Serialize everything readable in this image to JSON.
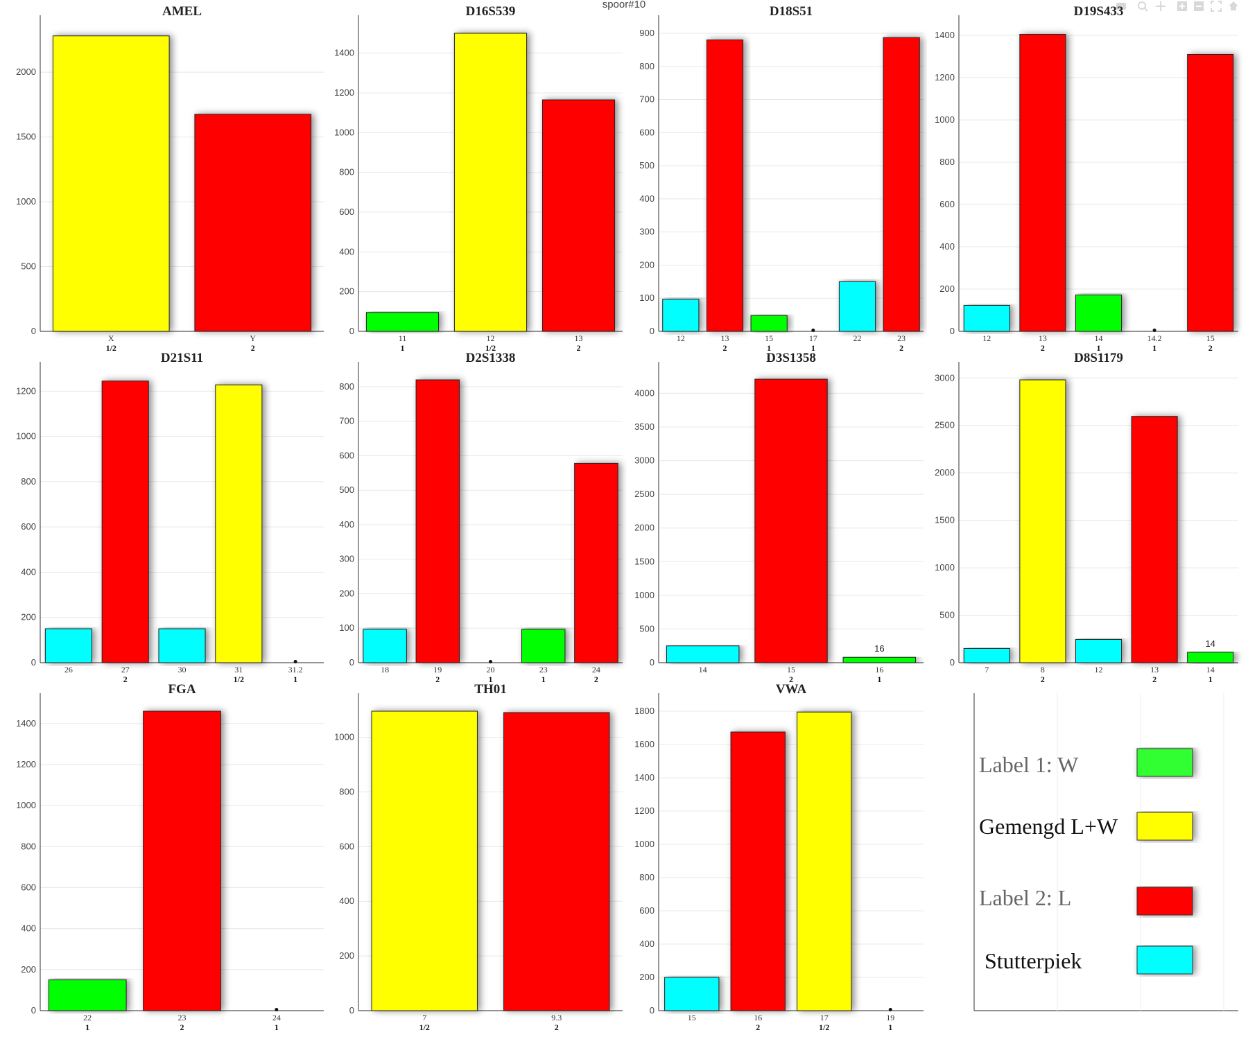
{
  "page_title": "spoor#10",
  "colors": {
    "W": "#00ff00",
    "mixed": "#ffff00",
    "L": "#ff0000",
    "stutter": "#00ffff"
  },
  "legend": {
    "items": [
      {
        "label": "Label 1: W",
        "color": "#33ff33"
      },
      {
        "label": "Gemengd L+W",
        "color": "#ffff00"
      },
      {
        "label": "Label 2: L",
        "color": "#ff0000"
      },
      {
        "label": "Stutterpiek",
        "color": "#00ffff"
      }
    ]
  },
  "toolbar": [
    "camera-icon",
    "zoom-icon",
    "pan-icon",
    "zoom-in-icon",
    "zoom-out-icon",
    "autoscale-icon",
    "home-icon"
  ],
  "chart_data": [
    {
      "type": "bar",
      "title": "AMEL",
      "ylim": [
        0,
        2300
      ],
      "yticks": [
        0,
        500,
        1000,
        1500,
        2000
      ],
      "bars": [
        {
          "x": "X",
          "sub": "1/2",
          "value": 2280,
          "color": "#ffff00"
        },
        {
          "x": "Y",
          "sub": "2",
          "value": 1675,
          "color": "#ff0000"
        }
      ]
    },
    {
      "type": "bar",
      "title": "D16S539",
      "ylim": [
        0,
        1500
      ],
      "yticks": [
        0,
        200,
        400,
        600,
        800,
        1000,
        1200,
        1400
      ],
      "bars": [
        {
          "x": "11",
          "sub": "1",
          "value": 95,
          "color": "#00ff00"
        },
        {
          "x": "12",
          "sub": "1/2",
          "value": 1500,
          "color": "#ffff00"
        },
        {
          "x": "13",
          "sub": "2",
          "value": 1165,
          "color": "#ff0000"
        }
      ]
    },
    {
      "type": "bar",
      "title": "D18S51",
      "ylim": [
        0,
        900
      ],
      "yticks": [
        0,
        100,
        200,
        300,
        400,
        500,
        600,
        700,
        800,
        900
      ],
      "bars": [
        {
          "x": "12",
          "sub": "",
          "value": 97,
          "color": "#00ffff"
        },
        {
          "x": "13",
          "sub": "2",
          "value": 880,
          "color": "#ff0000"
        },
        {
          "x": "15",
          "sub": "1",
          "value": 48,
          "color": "#00ff00"
        },
        {
          "x": "17",
          "sub": "1",
          "value": 2,
          "color": "#00ff00"
        },
        {
          "x": "22",
          "sub": "",
          "value": 150,
          "color": "#00ffff"
        },
        {
          "x": "23",
          "sub": "2",
          "value": 887,
          "color": "#ff0000"
        }
      ]
    },
    {
      "type": "bar",
      "title": "D19S433",
      "ylim": [
        0,
        1410
      ],
      "yticks": [
        0,
        200,
        400,
        600,
        800,
        1000,
        1200,
        1400
      ],
      "bars": [
        {
          "x": "12",
          "sub": "",
          "value": 123,
          "color": "#00ffff"
        },
        {
          "x": "13",
          "sub": "2",
          "value": 1405,
          "color": "#ff0000"
        },
        {
          "x": "14",
          "sub": "1",
          "value": 172,
          "color": "#00ff00"
        },
        {
          "x": "14.2",
          "sub": "1",
          "value": 3,
          "color": "#00ff00"
        },
        {
          "x": "15",
          "sub": "2",
          "value": 1310,
          "color": "#ff0000"
        }
      ]
    },
    {
      "type": "bar",
      "title": "D21S11",
      "ylim": [
        0,
        1250
      ],
      "yticks": [
        0,
        200,
        400,
        600,
        800,
        1000,
        1200
      ],
      "bars": [
        {
          "x": "26",
          "sub": "",
          "value": 150,
          "color": "#00ffff"
        },
        {
          "x": "27",
          "sub": "2",
          "value": 1245,
          "color": "#ff0000"
        },
        {
          "x": "30",
          "sub": "",
          "value": 150,
          "color": "#00ffff"
        },
        {
          "x": "31",
          "sub": "1/2",
          "value": 1228,
          "color": "#ffff00"
        },
        {
          "x": "31.2",
          "sub": "1",
          "value": 4,
          "color": "#00ff00"
        }
      ]
    },
    {
      "type": "bar",
      "title": "D2S1338",
      "ylim": [
        0,
        820
      ],
      "yticks": [
        0,
        100,
        200,
        300,
        400,
        500,
        600,
        700,
        800
      ],
      "bars": [
        {
          "x": "18",
          "sub": "",
          "value": 97,
          "color": "#00ffff"
        },
        {
          "x": "19",
          "sub": "2",
          "value": 820,
          "color": "#ff0000"
        },
        {
          "x": "20",
          "sub": "1",
          "value": 2,
          "color": "#00ff00"
        },
        {
          "x": "23",
          "sub": "1",
          "value": 97,
          "color": "#00ff00"
        },
        {
          "x": "24",
          "sub": "2",
          "value": 578,
          "color": "#ff0000"
        }
      ]
    },
    {
      "type": "bar",
      "title": "D3S1358",
      "ylim": [
        0,
        4200
      ],
      "yticks": [
        0,
        500,
        1000,
        1500,
        2000,
        2500,
        3000,
        3500,
        4000
      ],
      "bars": [
        {
          "x": "14",
          "sub": "",
          "value": 250,
          "color": "#00ffff"
        },
        {
          "x": "15",
          "sub": "2",
          "value": 4210,
          "color": "#ff0000"
        },
        {
          "x": "16",
          "sub": "1",
          "value": 80,
          "color": "#00ff00",
          "label": "16"
        }
      ]
    },
    {
      "type": "bar",
      "title": "D8S1179",
      "ylim": [
        0,
        2980
      ],
      "yticks": [
        0,
        500,
        1000,
        1500,
        2000,
        2500,
        3000
      ],
      "bars": [
        {
          "x": "7",
          "sub": "",
          "value": 150,
          "color": "#00ffff"
        },
        {
          "x": "8",
          "sub": "2",
          "value": 2980,
          "color": "#ffff00"
        },
        {
          "x": "12",
          "sub": "",
          "value": 245,
          "color": "#00ffff"
        },
        {
          "x": "13",
          "sub": "2",
          "value": 2595,
          "color": "#ff0000"
        },
        {
          "x": "14",
          "sub": "1",
          "value": 110,
          "color": "#00ff00",
          "label": "14"
        }
      ]
    },
    {
      "type": "bar",
      "title": "FGA",
      "ylim": [
        0,
        1460
      ],
      "yticks": [
        0,
        200,
        400,
        600,
        800,
        1000,
        1200,
        1400
      ],
      "bars": [
        {
          "x": "22",
          "sub": "1",
          "value": 150,
          "color": "#00ff00"
        },
        {
          "x": "23",
          "sub": "2",
          "value": 1460,
          "color": "#ff0000"
        },
        {
          "x": "24",
          "sub": "1",
          "value": 3,
          "color": "#00ff00"
        }
      ]
    },
    {
      "type": "bar",
      "title": "TH01",
      "ylim": [
        0,
        1095
      ],
      "yticks": [
        0,
        200,
        400,
        600,
        800,
        1000
      ],
      "bars": [
        {
          "x": "7",
          "sub": "1/2",
          "value": 1095,
          "color": "#ffff00"
        },
        {
          "x": "9.3",
          "sub": "2",
          "value": 1090,
          "color": "#ff0000"
        }
      ]
    },
    {
      "type": "bar",
      "title": "VWA",
      "ylim": [
        0,
        1800
      ],
      "yticks": [
        0,
        200,
        400,
        600,
        800,
        1000,
        1200,
        1400,
        1600,
        1800
      ],
      "bars": [
        {
          "x": "15",
          "sub": "",
          "value": 200,
          "color": "#00ffff"
        },
        {
          "x": "16",
          "sub": "2",
          "value": 1675,
          "color": "#ff0000"
        },
        {
          "x": "17",
          "sub": "1/2",
          "value": 1795,
          "color": "#ffff00"
        },
        {
          "x": "19",
          "sub": "1",
          "value": 3,
          "color": "#00ff00"
        }
      ]
    }
  ]
}
